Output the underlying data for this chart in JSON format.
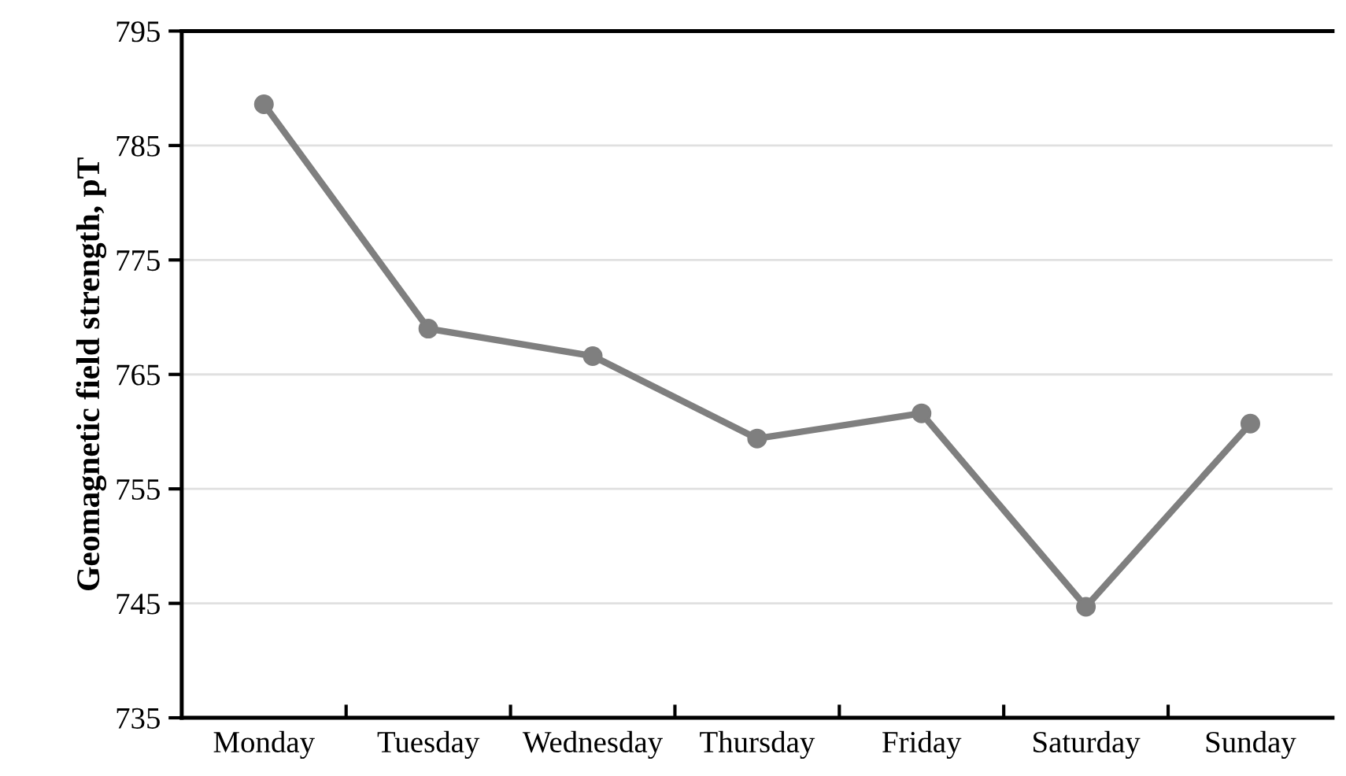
{
  "chart_data": {
    "type": "line",
    "ylabel": "Geomagnetic field strength, pT",
    "categories": [
      "Monday",
      "Tuesday",
      "Wednesday",
      "Thursday",
      "Friday",
      "Saturday",
      "Sunday"
    ],
    "series": [
      {
        "color": "#7f7f7f",
        "values": [
          788.6,
          769.0,
          766.6,
          759.4,
          761.6,
          744.7,
          760.7
        ]
      }
    ],
    "ylim": [
      735,
      795
    ],
    "yticks": [
      735,
      745,
      755,
      765,
      775,
      785,
      795
    ],
    "grid": "y",
    "marker": "circle",
    "line_style": "solid",
    "legend": false
  }
}
